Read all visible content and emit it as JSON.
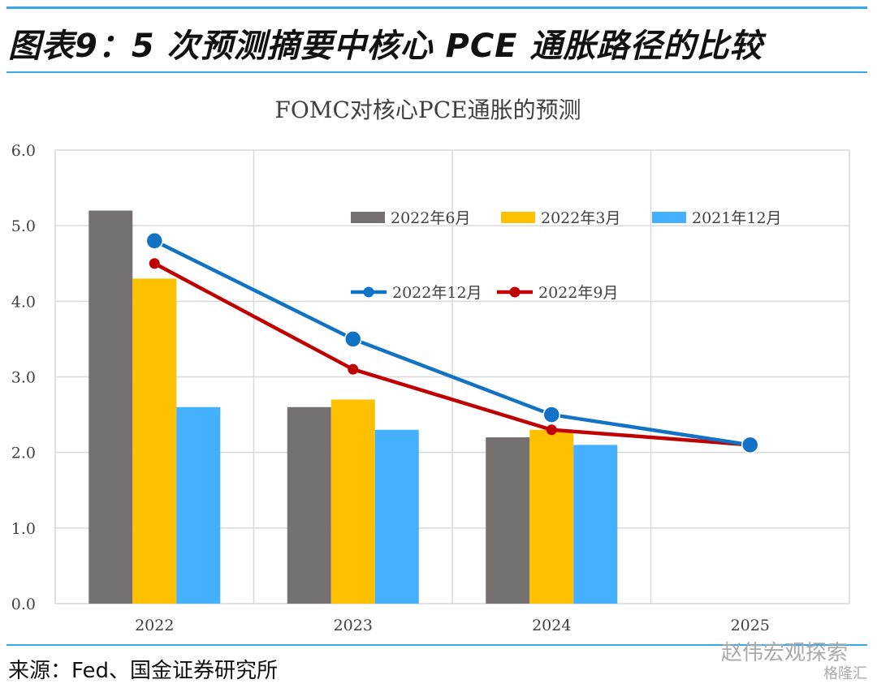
{
  "header": {
    "title": "图表9：5 次预测摘要中核心 PCE 通胀路径的比较"
  },
  "footer": {
    "source": "来源：Fed、国金证券研究所",
    "watermark": "赵伟宏观探索",
    "watermark_logo": "格隆汇"
  },
  "colors": {
    "rule": "#3aa8e8",
    "jun_2022": "#767171",
    "mar_2022": "#ffc000",
    "dec_2021": "#45b0ff",
    "dec_2022": "#1272c4",
    "sep_2022": "#c00000",
    "grid": "#d9d9d9"
  },
  "chart_data": {
    "type": "bar",
    "title": "FOMC对核心PCE通胀的预测",
    "xlabel": "",
    "ylabel": "",
    "categories": [
      "2022",
      "2023",
      "2024",
      "2025"
    ],
    "ylim": [
      0,
      6
    ],
    "yticks": [
      "0.0",
      "1.0",
      "2.0",
      "3.0",
      "4.0",
      "5.0",
      "6.0"
    ],
    "grid": true,
    "legend_position": "top-right",
    "bar_series": [
      {
        "name": "2022年6月",
        "values": [
          5.2,
          2.6,
          2.2,
          null
        ]
      },
      {
        "name": "2022年3月",
        "values": [
          4.3,
          2.7,
          2.3,
          null
        ]
      },
      {
        "name": "2021年12月",
        "values": [
          2.6,
          2.3,
          2.1,
          null
        ]
      }
    ],
    "line_series": [
      {
        "name": "2022年12月",
        "values": [
          4.8,
          3.5,
          2.5,
          2.1
        ]
      },
      {
        "name": "2022年9月",
        "values": [
          4.5,
          3.1,
          2.3,
          2.1
        ]
      }
    ]
  }
}
